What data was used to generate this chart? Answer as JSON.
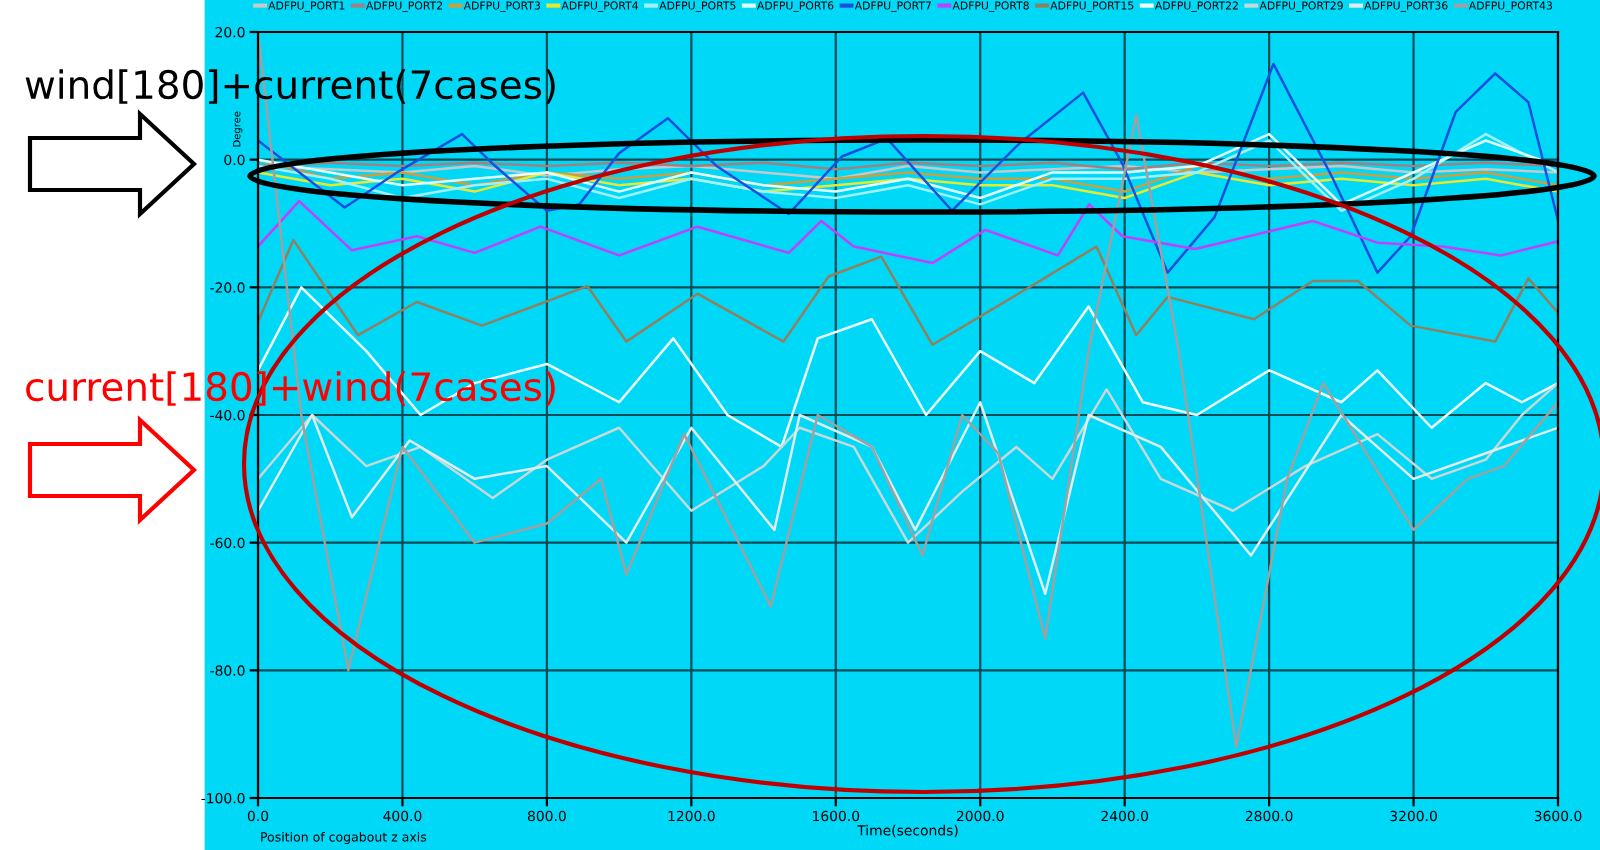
{
  "chart_data": {
    "type": "line",
    "xlabel": "Time(seconds)",
    "ylabel": "Degree",
    "annotations": [
      "wind[180]+current(7cases)",
      "current[180]+wind(7cases)",
      "Position of cogabout z axis"
    ],
    "xlim": [
      0,
      3600
    ],
    "ylim": [
      -100,
      20
    ],
    "xticks": [
      {
        "value": 0,
        "label": "0.0"
      },
      {
        "value": 400,
        "label": "400.0"
      },
      {
        "value": 800,
        "label": "800.0"
      },
      {
        "value": 1200,
        "label": "1200.0"
      },
      {
        "value": 1600,
        "label": "1600.0"
      },
      {
        "value": 2000,
        "label": "2000.0"
      },
      {
        "value": 2400,
        "label": "2400.0"
      },
      {
        "value": 2800,
        "label": "2800.0"
      },
      {
        "value": 3200,
        "label": "3200.0"
      },
      {
        "value": 3600,
        "label": "3600.0"
      }
    ],
    "yticks": [
      {
        "value": -100,
        "label": "-100.0"
      },
      {
        "value": -80,
        "label": "-80.0"
      },
      {
        "value": -60,
        "label": "-60.0"
      },
      {
        "value": -40,
        "label": "-40.0"
      },
      {
        "value": -20,
        "label": "-20.0"
      },
      {
        "value": 0,
        "label": "0.0"
      },
      {
        "value": 20,
        "label": "20.0"
      }
    ],
    "grid": true,
    "legend": "top",
    "line_style": "solid",
    "series": [
      {
        "name": "ADFPU_PORT1",
        "color": "#c8c8c8",
        "x": [
          0,
          200,
          400,
          600,
          800,
          1000,
          1200,
          1400,
          1600,
          1800,
          2000,
          2200,
          2400,
          2600,
          2800,
          3000,
          3200,
          3400,
          3600
        ],
        "values": [
          -1,
          -1.5,
          -2,
          -1,
          -2.5,
          -1.5,
          -1,
          -2,
          -3,
          -1,
          -2,
          -1.5,
          -1,
          -2,
          -1.5,
          -1,
          -2,
          -1.5,
          -2
        ]
      },
      {
        "name": "ADFPU_PORT2",
        "color": "#a08080",
        "x": [
          0,
          200,
          400,
          600,
          800,
          1000,
          1200,
          1400,
          1600,
          1800,
          2000,
          2200,
          2400,
          2600,
          2800,
          3000,
          3200,
          3400,
          3600
        ],
        "values": [
          -1,
          -0.5,
          -1,
          -0.5,
          -1,
          -0.5,
          -1,
          -0.5,
          -1.5,
          -0.5,
          -1,
          -0.5,
          -1.5,
          -0.5,
          -1,
          -0.5,
          -1,
          -0.5,
          -1
        ]
      },
      {
        "name": "ADFPU_PORT3",
        "color": "#c8a040",
        "x": [
          0,
          200,
          400,
          600,
          800,
          1000,
          1200,
          1400,
          1600,
          1800,
          2000,
          2200,
          2400,
          2600,
          2800,
          3000,
          3200,
          3400,
          3600
        ],
        "values": [
          0,
          -3,
          -2,
          -4,
          -2,
          -3,
          -2,
          -4,
          -3,
          -2,
          -3,
          -3,
          -5,
          -1,
          -3,
          -2,
          -3,
          -2,
          -4
        ]
      },
      {
        "name": "ADFPU_PORT4",
        "color": "#e8e830",
        "x": [
          0,
          200,
          400,
          600,
          800,
          1000,
          1200,
          1400,
          1600,
          1800,
          2000,
          2200,
          2400,
          2600,
          2800,
          3000,
          3200,
          3400,
          3600
        ],
        "values": [
          -2,
          -4,
          -3,
          -5,
          -2,
          -4,
          -3,
          -5,
          -4,
          -3,
          -4,
          -4,
          -6,
          -2,
          -4,
          -3,
          -4,
          -3,
          -5
        ]
      },
      {
        "name": "ADFPU_PORT5",
        "color": "#a0f0ff",
        "x": [
          0,
          200,
          400,
          600,
          800,
          1000,
          1200,
          1400,
          1600,
          1800,
          2000,
          2200,
          2400,
          2600,
          2800,
          3000,
          3200,
          3400,
          3600
        ],
        "values": [
          -1,
          -3,
          -6,
          -4,
          -3,
          -6,
          -3,
          -5,
          -6,
          -4,
          -7,
          -3,
          -3,
          -2,
          3,
          -8,
          -3,
          4,
          -2
        ]
      },
      {
        "name": "ADFPU_PORT6",
        "color": "#e0ffff",
        "x": [
          0,
          200,
          400,
          600,
          800,
          1000,
          1200,
          1400,
          1600,
          1800,
          2000,
          2200,
          2400,
          2600,
          2800,
          3000,
          3200,
          3400,
          3600
        ],
        "values": [
          0,
          -2,
          -4,
          -3,
          -2,
          -5,
          -2,
          -4,
          -5,
          -3,
          -6,
          -2,
          -2,
          -1,
          4,
          -7,
          -2,
          3,
          -1
        ]
      },
      {
        "name": "ADFPU_PORT7",
        "color": "#1a4fe0",
        "x": [
          0,
          240,
          385,
          565,
          657,
          800,
          890,
          1000,
          1135,
          1270,
          1470,
          1617,
          1742,
          1922,
          2106,
          2285,
          2394,
          2519,
          2649,
          2812,
          2975,
          3100,
          3192,
          3317,
          3426,
          3518,
          3600
        ],
        "values": [
          3,
          -7.5,
          -2,
          4,
          -1,
          -8,
          -7,
          1,
          6.5,
          -1,
          -8.5,
          0.5,
          3.3,
          -8,
          2.4,
          10.5,
          -0.7,
          -17.7,
          -9,
          15,
          -2.8,
          -17.7,
          -12,
          7.5,
          13.5,
          9,
          -9.5
        ]
      },
      {
        "name": "ADFPU_PORT8",
        "color": "#c040ff",
        "x": [
          0,
          114,
          260,
          440,
          600,
          782,
          1000,
          1217,
          1470,
          1560,
          1650,
          1868,
          2014,
          2215,
          2302,
          2394,
          2595,
          2921,
          3100,
          3280,
          3442,
          3600
        ],
        "values": [
          -13.6,
          -6.5,
          -14.2,
          -12,
          -14.6,
          -10.5,
          -15,
          -10.5,
          -14.6,
          -9.6,
          -13.6,
          -16.2,
          -11,
          -15,
          -7,
          -12,
          -14,
          -9.6,
          -13,
          -13.6,
          -15,
          -12.8
        ]
      },
      {
        "name": "ADFPU_PORT15",
        "color": "#908060",
        "x": [
          0,
          98,
          277,
          440,
          620,
          912,
          1020,
          1217,
          1455,
          1580,
          1726,
          1868,
          2177,
          2322,
          2432,
          2519,
          2758,
          2921,
          3046,
          3192,
          3426,
          3518,
          3600
        ],
        "values": [
          -25.4,
          -12.6,
          -27.5,
          -22.3,
          -26,
          -19.8,
          -28.5,
          -21,
          -28.5,
          -18.3,
          -15.2,
          -29,
          -18.6,
          -13.6,
          -27.5,
          -21.5,
          -25,
          -19,
          -19,
          -26,
          -28.5,
          -18.6,
          -24
        ]
      },
      {
        "name": "ADFPU_PORT22",
        "color": "#f0ffff",
        "x": [
          0,
          120,
          300,
          450,
          600,
          800,
          1000,
          1150,
          1300,
          1450,
          1550,
          1700,
          1850,
          2000,
          2150,
          2300,
          2450,
          2600,
          2800,
          3000,
          3100,
          3250,
          3400,
          3500,
          3600
        ],
        "values": [
          -33,
          -20,
          -30,
          -40,
          -35,
          -32,
          -38,
          -28,
          -40,
          -45,
          -28,
          -25,
          -40,
          -30,
          -35,
          -23,
          -38,
          -40,
          -33,
          -38,
          -33,
          -42,
          -35,
          -38,
          -35
        ]
      },
      {
        "name": "ADFPU_PORT29",
        "color": "#c8d8d8",
        "x": [
          0,
          150,
          300,
          450,
          650,
          800,
          1000,
          1200,
          1400,
          1500,
          1650,
          1800,
          1950,
          2100,
          2200,
          2350,
          2500,
          2700,
          2900,
          3100,
          3250,
          3400,
          3500,
          3600
        ],
        "values": [
          -50,
          -40,
          -48,
          -45,
          -53,
          -47,
          -42,
          -55,
          -48,
          -42,
          -45,
          -60,
          -52,
          -45,
          -50,
          -36,
          -50,
          -55,
          -48,
          -43,
          -50,
          -47,
          -40,
          -35
        ]
      },
      {
        "name": "ADFPU_PORT36",
        "color": "#e0ecec",
        "x": [
          0,
          150,
          260,
          420,
          600,
          800,
          1020,
          1200,
          1430,
          1500,
          1700,
          1820,
          2000,
          2180,
          2300,
          2500,
          2750,
          3000,
          3200,
          3400,
          3600
        ],
        "values": [
          -55,
          -40,
          -56,
          -44,
          -50,
          -48,
          -60,
          -42,
          -58,
          -40,
          -45,
          -58,
          -38,
          -68,
          -40,
          -45,
          -62,
          -40,
          -50,
          -46,
          -42
        ]
      },
      {
        "name": "ADFPU_PORT43",
        "color": "#a0a0a0",
        "x": [
          0,
          120,
          250,
          400,
          600,
          800,
          950,
          1020,
          1180,
          1420,
          1550,
          1700,
          1840,
          1950,
          2050,
          2180,
          2300,
          2432,
          2550,
          2709,
          2850,
          2950,
          3200,
          3350,
          3450,
          3600
        ],
        "values": [
          20,
          -40,
          -80,
          -45,
          -60,
          -57,
          -50,
          -65,
          -43,
          -70,
          -40,
          -45,
          -62,
          -40,
          -46,
          -75,
          -30,
          7,
          -30,
          -92,
          -50,
          -35,
          -58,
          -50,
          -48,
          -38
        ]
      }
    ]
  }
}
